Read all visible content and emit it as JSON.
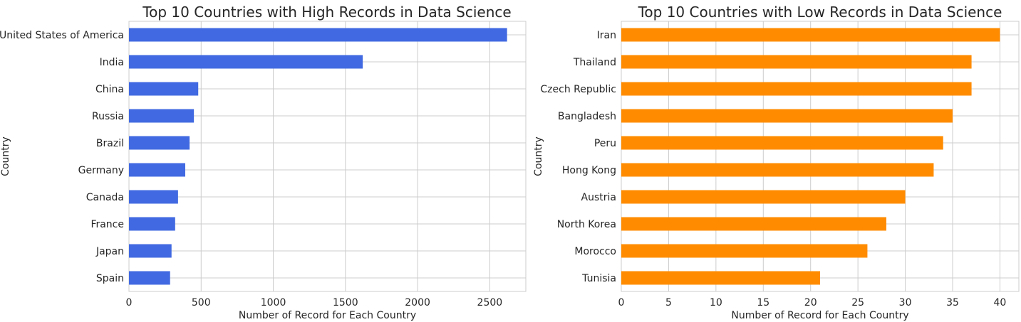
{
  "chart_data": [
    {
      "type": "bar",
      "orientation": "horizontal",
      "title": "Top 10 Countries with High Records in Data Science",
      "xlabel": "Number of Record for Each Country",
      "ylabel": "Country",
      "categories": [
        "United States of America",
        "India",
        "China",
        "Russia",
        "Brazil",
        "Germany",
        "Canada",
        "France",
        "Japan",
        "Spain"
      ],
      "values": [
        2620,
        1620,
        480,
        450,
        420,
        390,
        340,
        320,
        295,
        285
      ],
      "xlim": [
        0,
        2750
      ],
      "xticks": [
        0,
        500,
        1000,
        1500,
        2000,
        2500
      ],
      "color": "#4169e1",
      "grid": true
    },
    {
      "type": "bar",
      "orientation": "horizontal",
      "title": "Top 10 Countries with Low Records in Data Science",
      "xlabel": "Number of Record for Each Country",
      "ylabel": "Country",
      "categories": [
        "Iran",
        "Thailand",
        "Czech Republic",
        "Bangladesh",
        "Peru",
        "Hong Kong",
        "Austria",
        "North Korea",
        "Morocco",
        "Tunisia"
      ],
      "values": [
        40,
        37,
        37,
        35,
        34,
        33,
        30,
        28,
        26,
        21
      ],
      "xlim": [
        0,
        42
      ],
      "xticks": [
        0,
        5,
        10,
        15,
        20,
        25,
        30,
        35,
        40
      ],
      "color": "#ff8c00",
      "grid": true
    }
  ]
}
